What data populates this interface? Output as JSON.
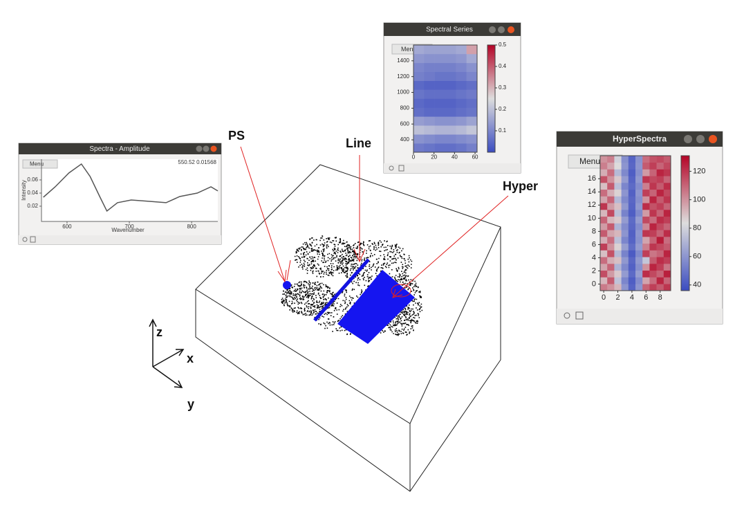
{
  "annotations": [
    "PS",
    "Line",
    "Hyper"
  ],
  "axis_labels": [
    "z",
    "x",
    "y"
  ],
  "chart_data": [
    {
      "type": "line",
      "title": "Spectra - Amplitude",
      "menu": "Menu",
      "readout": "550.52  0.01568",
      "x_label": "Wavenumber",
      "y_label": "Intensity",
      "color": "#555555",
      "x": [
        562,
        581,
        603,
        623,
        637,
        653,
        664,
        681,
        703,
        731,
        759,
        781,
        809,
        831,
        842
      ],
      "values": [
        0.0337,
        0.0495,
        0.0705,
        0.0842,
        0.0653,
        0.0337,
        0.0126,
        0.0253,
        0.0295,
        0.0274,
        0.0253,
        0.0347,
        0.04,
        0.0495,
        0.0432
      ],
      "xlim": [
        559,
        842
      ],
      "ylim": [
        -0.0032,
        0.0916
      ],
      "xticks": [
        600,
        700,
        800
      ],
      "yticks": [
        0.02,
        0.04,
        0.06
      ]
    },
    {
      "type": "heatmap",
      "title": "Spectral Series",
      "menu": "Menu",
      "xlim": [
        0,
        62
      ],
      "ylim": [
        243,
        1600
      ],
      "xticks": [
        0,
        20,
        40,
        60
      ],
      "yticks": [
        400,
        600,
        800,
        1000,
        1200,
        1400
      ],
      "clim": [
        0,
        0.5
      ],
      "cticks": [
        0.1,
        0.2,
        0.3,
        0.4,
        0.5
      ],
      "z": [
        [
          0.08,
          0.07,
          0.06,
          0.06,
          0.07,
          0.09
        ],
        [
          0.12,
          0.11,
          0.1,
          0.1,
          0.11,
          0.12
        ],
        [
          0.2,
          0.19,
          0.18,
          0.18,
          0.19,
          0.21
        ],
        [
          0.14,
          0.13,
          0.12,
          0.12,
          0.13,
          0.15
        ],
        [
          0.06,
          0.05,
          0.05,
          0.05,
          0.06,
          0.07
        ],
        [
          0.05,
          0.04,
          0.04,
          0.04,
          0.05,
          0.06
        ],
        [
          0.07,
          0.06,
          0.06,
          0.06,
          0.07,
          0.08
        ],
        [
          0.05,
          0.04,
          0.04,
          0.04,
          0.05,
          0.06
        ],
        [
          0.09,
          0.08,
          0.07,
          0.07,
          0.08,
          0.1
        ],
        [
          0.1,
          0.09,
          0.09,
          0.09,
          0.1,
          0.12
        ],
        [
          0.13,
          0.12,
          0.12,
          0.12,
          0.13,
          0.16
        ],
        [
          0.16,
          0.15,
          0.15,
          0.15,
          0.16,
          0.32
        ]
      ]
    },
    {
      "type": "heatmap",
      "title": "HyperSpectra",
      "menu": "Menu",
      "xlim": [
        -0.5,
        9.5
      ],
      "ylim": [
        -1,
        19.5
      ],
      "xticks": [
        0,
        2,
        4,
        6,
        8
      ],
      "yticks": [
        0,
        2,
        4,
        6,
        8,
        10,
        12,
        14,
        16
      ],
      "clim": [
        36,
        131
      ],
      "cticks": [
        40,
        60,
        80,
        100,
        120
      ],
      "z": [
        [
          105,
          100,
          92,
          60,
          44,
          60,
          110,
          118,
          112,
          120
        ],
        [
          92,
          112,
          75,
          55,
          42,
          57,
          96,
          108,
          124,
          110
        ],
        [
          115,
          98,
          88,
          62,
          46,
          63,
          122,
          116,
          110,
          125
        ],
        [
          96,
          110,
          70,
          56,
          43,
          58,
          100,
          124,
          118,
          106
        ],
        [
          108,
          94,
          90,
          61,
          45,
          61,
          76,
          112,
          122,
          118
        ],
        [
          90,
          114,
          72,
          54,
          41,
          56,
          118,
          106,
          110,
          124
        ],
        [
          118,
          100,
          86,
          63,
          47,
          62,
          104,
          120,
          116,
          112
        ],
        [
          94,
          108,
          74,
          55,
          44,
          59,
          96,
          110,
          126,
          108
        ],
        [
          112,
          96,
          92,
          60,
          43,
          60,
          120,
          118,
          110,
          122
        ],
        [
          98,
          112,
          70,
          57,
          45,
          57,
          102,
          124,
          116,
          110
        ],
        [
          110,
          92,
          88,
          62,
          46,
          62,
          116,
          108,
          122,
          118
        ],
        [
          92,
          116,
          74,
          54,
          42,
          56,
          98,
          120,
          110,
          124
        ],
        [
          120,
          98,
          90,
          61,
          44,
          61,
          122,
          114,
          118,
          110
        ],
        [
          96,
          110,
          72,
          56,
          45,
          58,
          100,
          124,
          112,
          120
        ],
        [
          108,
          94,
          86,
          60,
          43,
          60,
          118,
          110,
          124,
          116
        ],
        [
          90,
          112,
          74,
          55,
          46,
          57,
          104,
          120,
          112,
          122
        ],
        [
          114,
          100,
          88,
          62,
          44,
          61,
          120,
          116,
          118,
          110
        ],
        [
          94,
          108,
          72,
          56,
          42,
          58,
          98,
          110,
          124,
          120
        ],
        [
          104,
          96,
          84,
          60,
          45,
          60,
          112,
          118,
          110,
          116
        ],
        [
          100,
          104,
          80,
          58,
          44,
          59,
          108,
          114,
          116,
          112
        ]
      ]
    }
  ]
}
